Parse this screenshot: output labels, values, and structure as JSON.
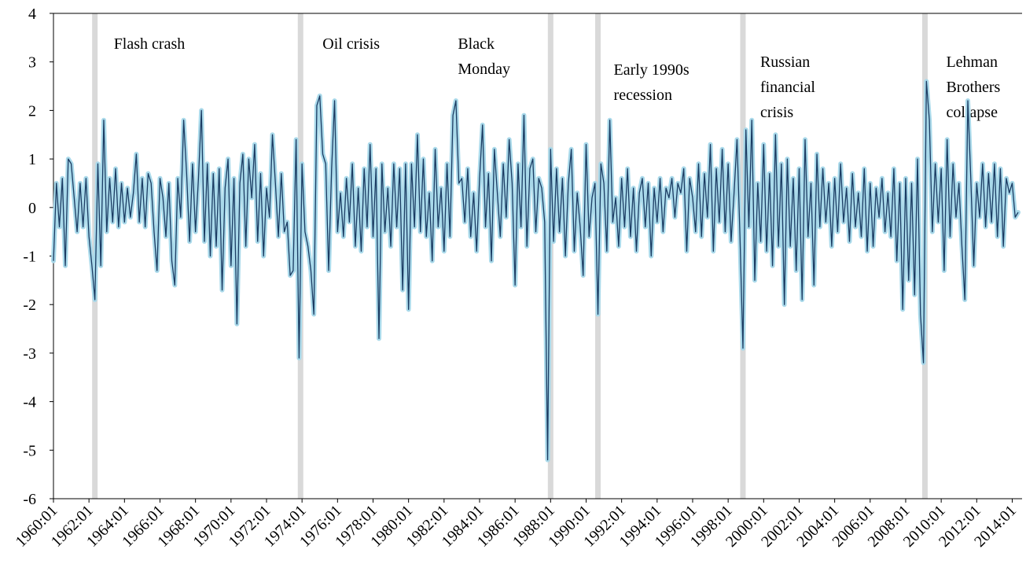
{
  "chart_data": {
    "type": "line",
    "series": [
      {
        "color": "#1b3c63",
        "halo_color": "#a9d9ea",
        "values": [
          -1.1,
          0.5,
          -0.4,
          0.6,
          -1.2,
          1.0,
          0.9,
          0.2,
          -0.5,
          0.5,
          -0.4,
          0.6,
          -0.6,
          -1.2,
          -1.9,
          0.9,
          -1.2,
          1.8,
          -0.5,
          0.6,
          -0.3,
          0.8,
          -0.4,
          0.5,
          -0.3,
          0.4,
          -0.2,
          0.3,
          1.1,
          -0.3,
          0.6,
          -0.4,
          0.7,
          0.5,
          -0.5,
          -1.3,
          0.6,
          0.2,
          -0.6,
          0.5,
          -1.1,
          -1.6,
          0.6,
          -0.2,
          1.8,
          0.7,
          -0.7,
          0.9,
          -0.5,
          0.6,
          2.0,
          -0.7,
          0.9,
          -1.0,
          0.7,
          -0.8,
          0.8,
          -1.7,
          0.4,
          1.0,
          -1.2,
          0.6,
          -2.4,
          0.5,
          1.1,
          -0.8,
          1.0,
          0.2,
          1.3,
          -0.7,
          0.7,
          -1.0,
          0.4,
          -0.2,
          1.5,
          0.5,
          -0.6,
          0.7,
          -0.5,
          -0.3,
          -1.4,
          -1.3,
          1.4,
          -3.1,
          0.9,
          -0.5,
          -0.8,
          -1.3,
          -2.2,
          2.1,
          2.3,
          1.1,
          0.9,
          -1.3,
          0.8,
          2.2,
          -0.5,
          0.3,
          -0.6,
          0.6,
          -0.3,
          0.9,
          -0.8,
          0.4,
          -0.9,
          0.8,
          -0.4,
          1.3,
          -0.6,
          0.8,
          -2.7,
          0.9,
          -0.5,
          0.4,
          -0.8,
          0.9,
          -0.4,
          0.8,
          -1.7,
          0.9,
          -2.1,
          0.9,
          -0.4,
          1.5,
          -0.5,
          1.0,
          -0.6,
          0.3,
          -1.1,
          1.2,
          -0.4,
          0.4,
          -0.9,
          0.9,
          -0.6,
          1.9,
          2.2,
          0.5,
          0.6,
          -0.3,
          0.8,
          -0.6,
          0.3,
          -0.9,
          0.6,
          1.7,
          -0.4,
          0.7,
          -1.1,
          1.2,
          0.3,
          -0.6,
          0.9,
          -0.2,
          1.4,
          0.5,
          -1.6,
          0.9,
          -0.4,
          1.9,
          -0.8,
          0.8,
          1.0,
          -0.5,
          0.6,
          0.4,
          -0.3,
          -5.2,
          1.2,
          -0.7,
          0.8,
          -0.5,
          0.6,
          -1.0,
          0.5,
          1.2,
          -0.9,
          0.3,
          -0.4,
          -1.4,
          1.3,
          -0.6,
          0.2,
          0.5,
          -2.2,
          0.9,
          0.5,
          -0.9,
          1.8,
          -0.3,
          0.2,
          -0.8,
          0.6,
          -0.4,
          0.8,
          -0.6,
          0.4,
          -0.9,
          0.3,
          0.6,
          -0.4,
          0.5,
          -1.0,
          0.4,
          -0.3,
          0.6,
          -0.5,
          0.4,
          0.2,
          0.6,
          -0.2,
          0.5,
          0.3,
          0.8,
          -0.9,
          0.6,
          0.2,
          -0.5,
          0.9,
          -0.6,
          0.7,
          -0.2,
          1.3,
          -0.9,
          0.8,
          -0.3,
          1.2,
          -0.5,
          0.9,
          -0.7,
          0.3,
          1.4,
          -0.6,
          -2.9,
          1.6,
          -0.4,
          1.8,
          -1.5,
          0.5,
          -0.7,
          1.3,
          -0.9,
          0.7,
          -1.2,
          1.5,
          -0.8,
          0.9,
          -2.0,
          1.0,
          -0.8,
          0.6,
          -1.3,
          0.8,
          -1.9,
          1.4,
          -0.6,
          0.5,
          -1.6,
          1.1,
          -0.4,
          0.8,
          -0.3,
          0.5,
          -0.8,
          0.6,
          -0.5,
          0.9,
          -0.3,
          0.4,
          -0.7,
          0.7,
          -0.4,
          0.3,
          -0.6,
          0.8,
          -0.9,
          0.5,
          -0.8,
          0.4,
          -0.2,
          0.6,
          -0.5,
          0.3,
          -0.6,
          0.8,
          -1.1,
          0.5,
          -2.1,
          0.6,
          -1.5,
          0.5,
          -1.8,
          1.0,
          -2.2,
          -3.2,
          2.6,
          1.8,
          -0.5,
          0.9,
          -0.3,
          0.8,
          -1.3,
          1.4,
          -0.6,
          0.9,
          -0.2,
          0.5,
          -0.8,
          -1.9,
          2.2,
          0.6,
          -1.2,
          0.5,
          -0.2,
          0.9,
          -0.4,
          0.7,
          -0.3,
          0.9,
          -0.6,
          0.8,
          -0.8,
          0.6,
          0.3,
          0.5,
          -0.2,
          -0.1
        ]
      }
    ],
    "categories": [
      "1960:01",
      null,
      null,
      null,
      null,
      null,
      null,
      null,
      null,
      null,
      null,
      null,
      "1962:01",
      null,
      null,
      null,
      null,
      null,
      null,
      null,
      null,
      null,
      null,
      null,
      "1964:01",
      null,
      null,
      null,
      null,
      null,
      null,
      null,
      null,
      null,
      null,
      null,
      "1966:01",
      null,
      null,
      null,
      null,
      null,
      null,
      null,
      null,
      null,
      null,
      null,
      "1968:01",
      null,
      null,
      null,
      null,
      null,
      null,
      null,
      null,
      null,
      null,
      null,
      "1970:01",
      null,
      null,
      null,
      null,
      null,
      null,
      null,
      null,
      null,
      null,
      null,
      "1972:01",
      null,
      null,
      null,
      null,
      null,
      null,
      null,
      null,
      null,
      null,
      null,
      "1974:01",
      null,
      null,
      null,
      null,
      null,
      null,
      null,
      null,
      null,
      null,
      null,
      "1976:01",
      null,
      null,
      null,
      null,
      null,
      null,
      null,
      null,
      null,
      null,
      null,
      "1978:01",
      null,
      null,
      null,
      null,
      null,
      null,
      null,
      null,
      null,
      null,
      null,
      "1980:01",
      null,
      null,
      null,
      null,
      null,
      null,
      null,
      null,
      null,
      null,
      null,
      "1982:01",
      null,
      null,
      null,
      null,
      null,
      null,
      null,
      null,
      null,
      null,
      null,
      "1984:01",
      null,
      null,
      null,
      null,
      null,
      null,
      null,
      null,
      null,
      null,
      null,
      "1986:01",
      null,
      null,
      null,
      null,
      null,
      null,
      null,
      null,
      null,
      null,
      null,
      "1988:01",
      null,
      null,
      null,
      null,
      null,
      null,
      null,
      null,
      null,
      null,
      null,
      "1990:01",
      null,
      null,
      null,
      null,
      null,
      null,
      null,
      null,
      null,
      null,
      null,
      "1992:01",
      null,
      null,
      null,
      null,
      null,
      null,
      null,
      null,
      null,
      null,
      null,
      "1994:01",
      null,
      null,
      null,
      null,
      null,
      null,
      null,
      null,
      null,
      null,
      null,
      "1996:01",
      null,
      null,
      null,
      null,
      null,
      null,
      null,
      null,
      null,
      null,
      null,
      "1998:01",
      null,
      null,
      null,
      null,
      null,
      null,
      null,
      null,
      null,
      null,
      null,
      "2000:01",
      null,
      null,
      null,
      null,
      null,
      null,
      null,
      null,
      null,
      null,
      null,
      "2002:01",
      null,
      null,
      null,
      null,
      null,
      null,
      null,
      null,
      null,
      null,
      null,
      "2004:01",
      null,
      null,
      null,
      null,
      null,
      null,
      null,
      null,
      null,
      null,
      null,
      "2006:01",
      null,
      null,
      null,
      null,
      null,
      null,
      null,
      null,
      null,
      null,
      null,
      "2008:01",
      null,
      null,
      null,
      null,
      null,
      null,
      null,
      null,
      null,
      null,
      null,
      "2010:01",
      null,
      null,
      null,
      null,
      null,
      null,
      null,
      null,
      null,
      null,
      null,
      "2012:01",
      null,
      null,
      null,
      null,
      null,
      null,
      null,
      null,
      null,
      null,
      null,
      "2014:01",
      null,
      null
    ],
    "ylim": [
      -6,
      4
    ],
    "yticks": [
      -6,
      -5,
      -4,
      -3,
      -2,
      -1,
      0,
      1,
      2,
      3,
      4
    ],
    "events": [
      {
        "date": "1962:05",
        "text": [
          "Flash crash"
        ]
      },
      {
        "date": "1973:12",
        "text": [
          "Oil crisis"
        ]
      },
      {
        "date": "1988:01",
        "text": [
          "Black",
          "Monday"
        ]
      },
      {
        "date": "1990:09",
        "text": [
          "Early 1990s",
          "recession"
        ]
      },
      {
        "date": "1998:11",
        "text": [
          "Russian",
          "financial",
          "crisis"
        ]
      },
      {
        "date": "2009:02",
        "text": [
          "Lehman",
          "Brothers",
          "collapse"
        ]
      }
    ],
    "event_color": "#d9d9d9"
  }
}
